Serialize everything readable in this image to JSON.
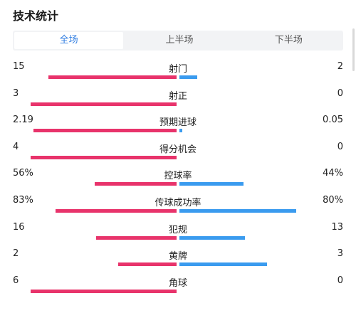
{
  "title": "技术统计",
  "tabs": [
    {
      "label": "全场",
      "active": true
    },
    {
      "label": "上半场",
      "active": false
    },
    {
      "label": "下半场",
      "active": false
    }
  ],
  "colors": {
    "home": "#e8336b",
    "away": "#3a9bef",
    "active_tab": "#2f7de1"
  },
  "stats": [
    {
      "label": "射门",
      "home": "15",
      "away": "2",
      "home_frac": 0.88,
      "away_frac": 0.12
    },
    {
      "label": "射正",
      "home": "3",
      "away": "0",
      "home_frac": 1.0,
      "away_frac": 0.0
    },
    {
      "label": "预期进球",
      "home": "2.19",
      "away": "0.05",
      "home_frac": 0.98,
      "away_frac": 0.02
    },
    {
      "label": "得分机会",
      "home": "4",
      "away": "0",
      "home_frac": 1.0,
      "away_frac": 0.0
    },
    {
      "label": "控球率",
      "home": "56%",
      "away": "44%",
      "home_frac": 0.56,
      "away_frac": 0.44
    },
    {
      "label": "传球成功率",
      "home": "83%",
      "away": "80%",
      "home_frac": 0.83,
      "away_frac": 0.8
    },
    {
      "label": "犯规",
      "home": "16",
      "away": "13",
      "home_frac": 0.55,
      "away_frac": 0.45
    },
    {
      "label": "黄牌",
      "home": "2",
      "away": "3",
      "home_frac": 0.4,
      "away_frac": 0.6
    },
    {
      "label": "角球",
      "home": "6",
      "away": "0",
      "home_frac": 1.0,
      "away_frac": 0.0
    }
  ]
}
